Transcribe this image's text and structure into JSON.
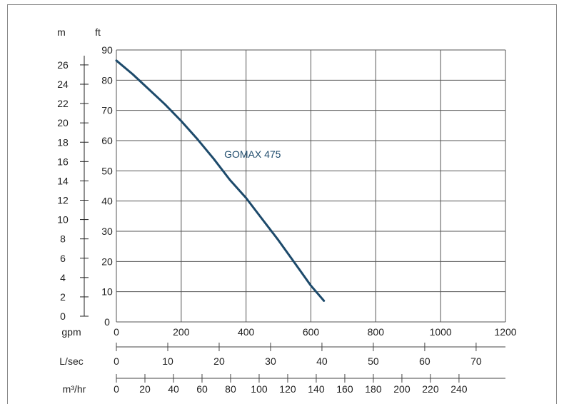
{
  "chart_data": {
    "type": "line",
    "units": {
      "head_m": "m",
      "head_ft": "ft",
      "flow_gpm": "gpm",
      "flow_lsec": "L/sec",
      "flow_m3hr": "m³/hr"
    },
    "y_ft_ticks": [
      "0",
      "10",
      "20",
      "30",
      "40",
      "50",
      "60",
      "70",
      "80",
      "90"
    ],
    "y_m_ticks": [
      "0",
      "2",
      "4",
      "6",
      "8",
      "10",
      "12",
      "14",
      "16",
      "18",
      "20",
      "22",
      "24",
      "26"
    ],
    "x_gpm_ticks": [
      "0",
      "200",
      "400",
      "600",
      "800",
      "1000",
      "1200"
    ],
    "x_lsec_ticks": [
      "0",
      "10",
      "20",
      "30",
      "40",
      "50",
      "60",
      "70"
    ],
    "x_m3hr_ticks": [
      "0",
      "20",
      "40",
      "60",
      "80",
      "100",
      "120",
      "140",
      "160",
      "180",
      "200",
      "220",
      "240"
    ],
    "xlim_gpm": [
      0,
      1200
    ],
    "ylim_ft": [
      0,
      90
    ],
    "grid": true,
    "series": [
      {
        "name": "GOMAX 475",
        "color": "#1d4a6b",
        "x": [
          0,
          50,
          100,
          150,
          200,
          250,
          300,
          350,
          400,
          450,
          500,
          550,
          600,
          640
        ],
        "y": [
          86.5,
          82,
          77,
          72,
          66.5,
          60.5,
          54,
          47,
          41,
          34,
          27,
          19.5,
          12,
          7
        ]
      }
    ]
  }
}
